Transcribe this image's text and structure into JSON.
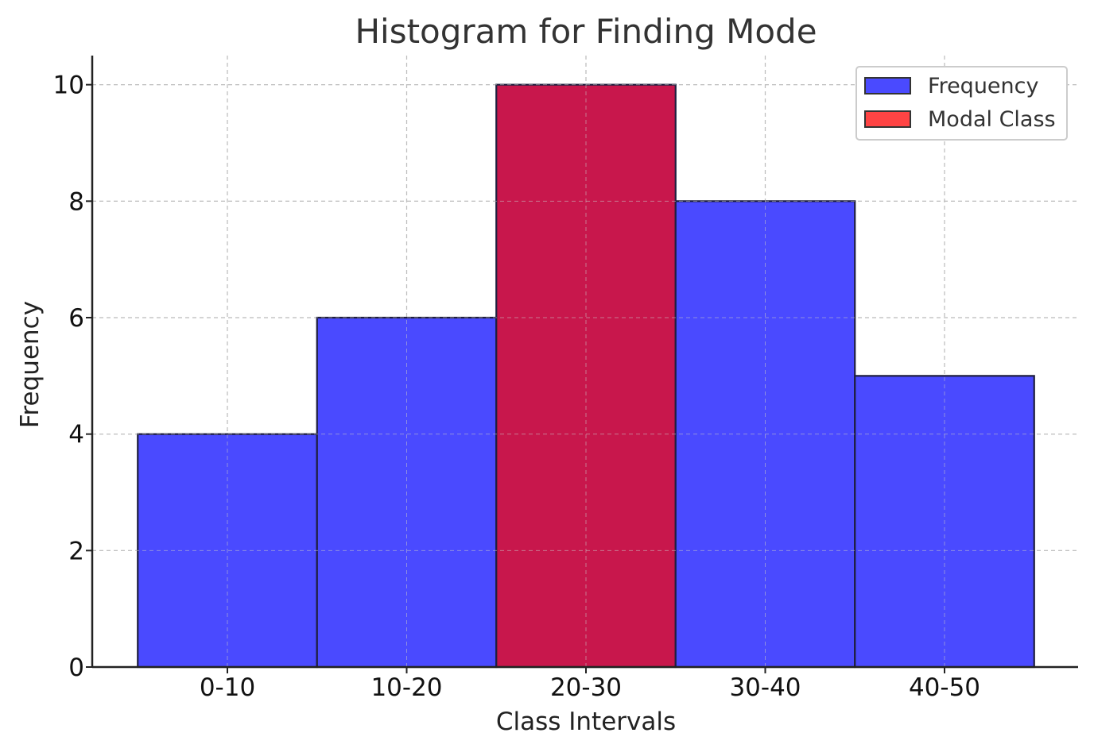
{
  "chart_data": {
    "type": "bar",
    "title": "Histogram for Finding Mode",
    "xlabel": "Class Intervals",
    "ylabel": "Frequency",
    "categories": [
      "0-10",
      "10-20",
      "20-30",
      "30-40",
      "40-50"
    ],
    "values": [
      4,
      6,
      10,
      8,
      5
    ],
    "modal_index": 2,
    "ylim": [
      0,
      10.5
    ],
    "yticks": [
      0,
      2,
      4,
      6,
      8,
      10
    ],
    "grid": true,
    "legend_position": "top-right",
    "legend": [
      {
        "label": "Frequency",
        "color": "#4a4aff"
      },
      {
        "label": "Modal Class",
        "color": "#ff4444"
      }
    ],
    "colors": {
      "bar": "#4a4aff",
      "modal_bar": "#c8174c",
      "edge": "#1f1f3f"
    }
  }
}
